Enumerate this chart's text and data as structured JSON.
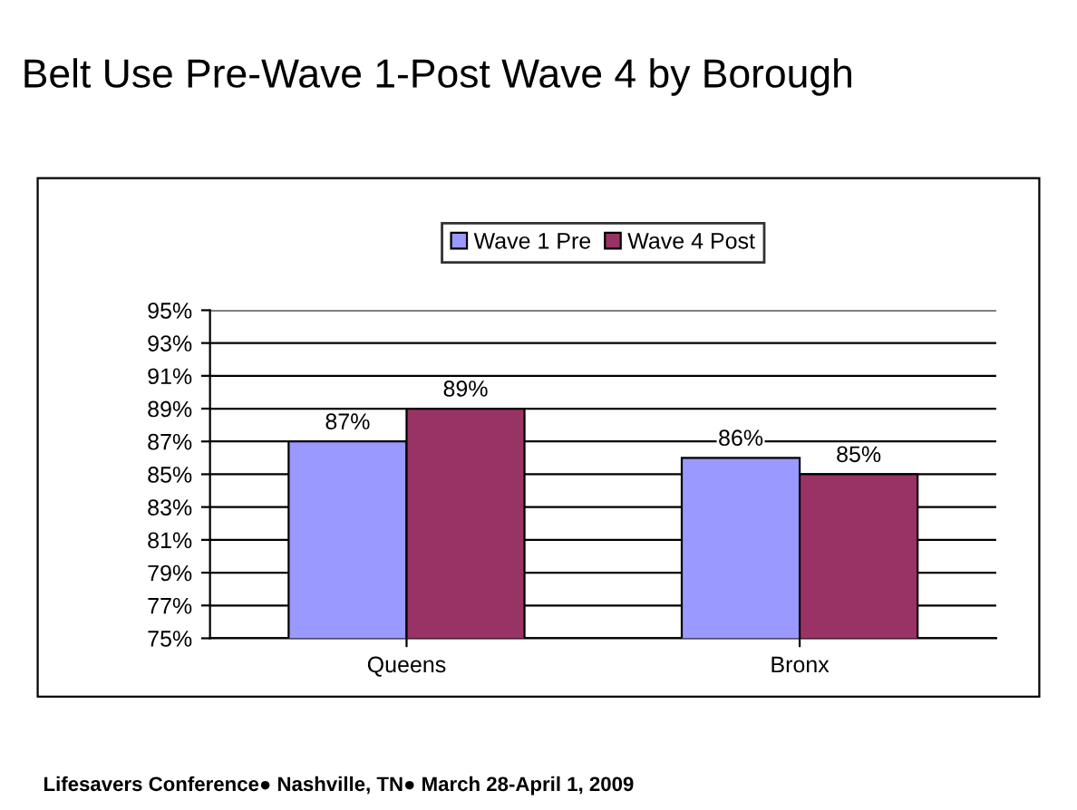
{
  "chart_data": {
    "type": "bar",
    "title": "Belt Use Pre-Wave 1-Post Wave 4 by Borough",
    "categories": [
      "Queens",
      "Bronx"
    ],
    "series": [
      {
        "name": "Wave 1 Pre",
        "color": "#9999ff",
        "values": [
          87,
          86
        ],
        "value_labels": [
          "87%",
          "86%"
        ]
      },
      {
        "name": "Wave 4 Post",
        "color": "#993366",
        "values": [
          89,
          85
        ],
        "value_labels": [
          "89%",
          "85%"
        ]
      }
    ],
    "ylim": [
      75,
      95
    ],
    "yticks": [
      {
        "value": 75,
        "label": "75%"
      },
      {
        "value": 77,
        "label": "77%"
      },
      {
        "value": 79,
        "label": "79%"
      },
      {
        "value": 81,
        "label": "81%"
      },
      {
        "value": 83,
        "label": "83%"
      },
      {
        "value": 85,
        "label": "85%"
      },
      {
        "value": 87,
        "label": "87%"
      },
      {
        "value": 89,
        "label": "89%"
      },
      {
        "value": 91,
        "label": "91%"
      },
      {
        "value": 93,
        "label": "93%"
      },
      {
        "value": 95,
        "label": "95%"
      }
    ],
    "grid": "y",
    "legend": "top",
    "annotations": [
      "Lifesavers Conference● Nashville, TN● March 28-April 1, 2009"
    ]
  }
}
